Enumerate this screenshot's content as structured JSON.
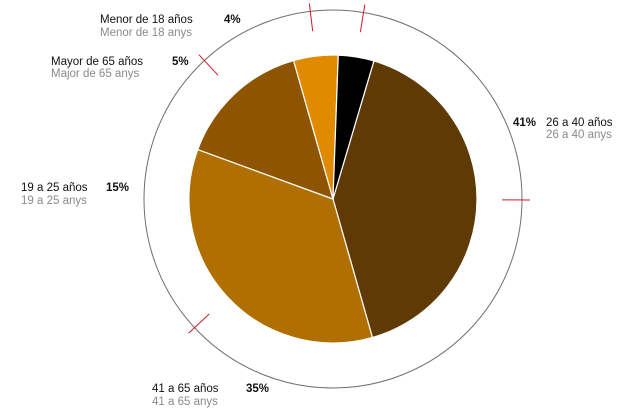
{
  "chart_data": {
    "type": "pie",
    "title": "",
    "slices": [
      {
        "label": "26 a 40 años",
        "label_alt": "26 a 40 anys",
        "value": 41,
        "pct_text": "41%",
        "color": "#5f3a05"
      },
      {
        "label": "41 a 65 años",
        "label_alt": "41 a 65 anys",
        "value": 35,
        "pct_text": "35%",
        "color": "#b06f00"
      },
      {
        "label": "19 a 25 años",
        "label_alt": "19 a 25 anys",
        "value": 15,
        "pct_text": "15%",
        "color": "#8f5400"
      },
      {
        "label": "Mayor de 65 años",
        "label_alt": "Major de 65 anys",
        "value": 5,
        "pct_text": "5%",
        "color": "#e08a00"
      },
      {
        "label": "Menor de 18 años",
        "label_alt": "Menor de 18 anys",
        "value": 4,
        "pct_text": "4%",
        "color": "#000000"
      }
    ],
    "outer_ring": true,
    "leader_line_color": "#d11a2a"
  }
}
